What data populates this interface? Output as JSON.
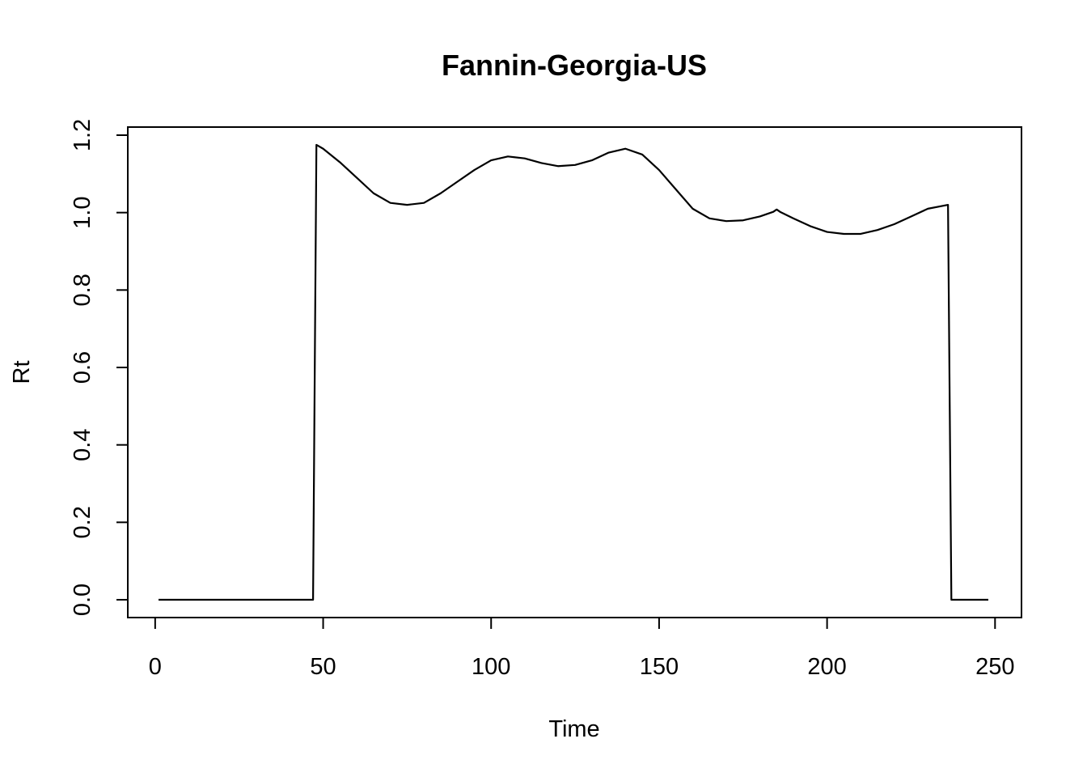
{
  "chart_data": {
    "type": "line",
    "title": "Fannin-Georgia-US",
    "xlabel": "Time",
    "ylabel": "Rt",
    "xlim": [
      1,
      248
    ],
    "ylim": [
      0,
      1.2
    ],
    "xticks": [
      0,
      50,
      100,
      150,
      200,
      250
    ],
    "yticks": [
      0.0,
      0.2,
      0.4,
      0.6,
      0.8,
      1.0,
      1.2
    ],
    "xtick_labels": [
      "0",
      "50",
      "100",
      "150",
      "200",
      "250"
    ],
    "ytick_labels": [
      "0.0",
      "0.2",
      "0.4",
      "0.6",
      "0.8",
      "1.0",
      "1.2"
    ],
    "grid": false,
    "series": [
      {
        "color": "#000000",
        "x": [
          1,
          10,
          20,
          30,
          40,
          47,
          48,
          50,
          55,
          60,
          65,
          70,
          75,
          80,
          85,
          90,
          95,
          100,
          105,
          110,
          115,
          120,
          125,
          130,
          135,
          140,
          145,
          150,
          155,
          160,
          165,
          170,
          175,
          180,
          184,
          185,
          186,
          190,
          195,
          200,
          205,
          210,
          215,
          220,
          225,
          230,
          236,
          237,
          240,
          248
        ],
        "y": [
          0,
          0,
          0,
          0,
          0,
          0,
          1.175,
          1.165,
          1.13,
          1.09,
          1.05,
          1.025,
          1.02,
          1.025,
          1.05,
          1.08,
          1.11,
          1.135,
          1.145,
          1.14,
          1.128,
          1.12,
          1.123,
          1.135,
          1.155,
          1.165,
          1.15,
          1.11,
          1.06,
          1.01,
          0.985,
          0.978,
          0.98,
          0.99,
          1.002,
          1.008,
          1.002,
          0.985,
          0.965,
          0.95,
          0.945,
          0.945,
          0.955,
          0.97,
          0.99,
          1.01,
          1.02,
          0,
          0,
          0
        ]
      }
    ]
  }
}
